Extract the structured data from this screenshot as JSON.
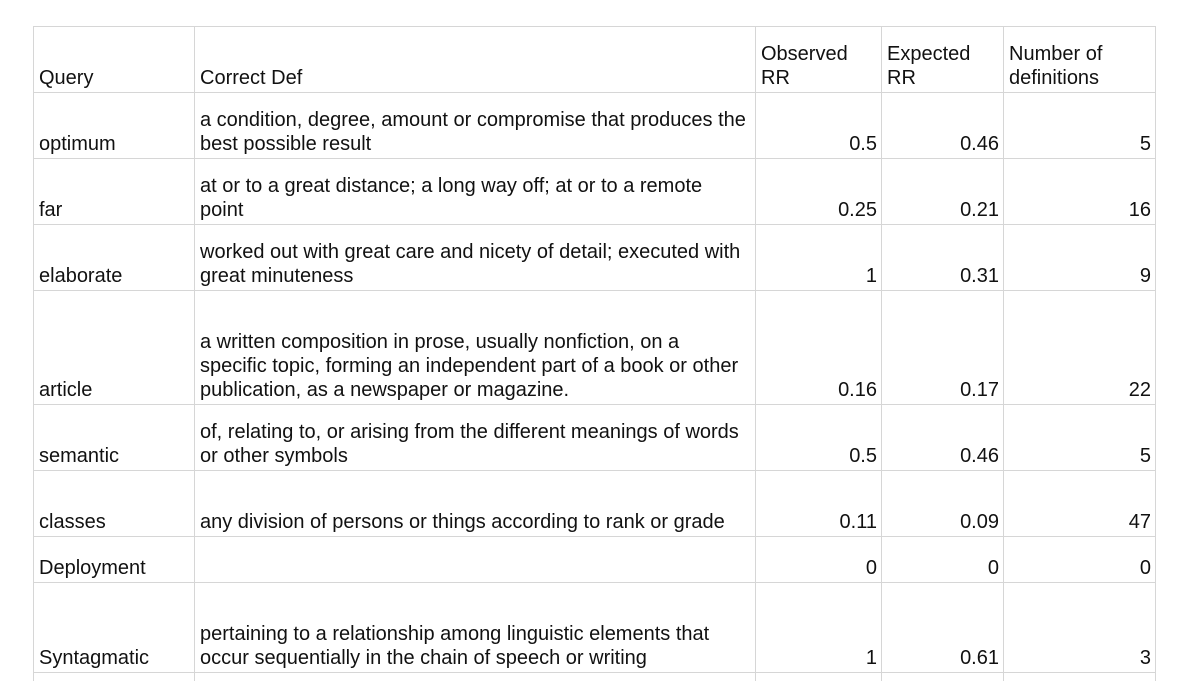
{
  "table": {
    "headers": {
      "query": "Query",
      "def": "Correct Def",
      "observed": "Observed RR",
      "expected": "Expected RR",
      "num_defs": "Number of definitions"
    },
    "rows": [
      {
        "query": "optimum",
        "def": "a condition, degree, amount or compromise that produces the best possible result",
        "observed": "0.5",
        "expected": "0.46",
        "num_defs": "5"
      },
      {
        "query": "far",
        "def": "at or to a great distance; a long way off; at or to a remote point",
        "observed": "0.25",
        "expected": "0.21",
        "num_defs": "16"
      },
      {
        "query": "elaborate",
        "def": "worked out with great care and nicety of detail; executed with great minuteness",
        "observed": "1",
        "expected": "0.31",
        "num_defs": "9"
      },
      {
        "query": "article",
        "def": "a written composition in prose, usually nonfiction, on a specific topic, forming an independent part of a book or other publication, as a newspaper or magazine.",
        "observed": "0.16",
        "expected": "0.17",
        "num_defs": "22"
      },
      {
        "query": "semantic",
        "def": "of, relating to, or arising from the different meanings of words or other symbols",
        "observed": "0.5",
        "expected": "0.46",
        "num_defs": "5"
      },
      {
        "query": "classes",
        "def": "any division of persons or things according to rank or grade",
        "observed": "0.11",
        "expected": "0.09",
        "num_defs": "47"
      },
      {
        "query": "Deployment",
        "def": "",
        "observed": "0",
        "expected": "0",
        "num_defs": "0"
      },
      {
        "query": "Syntagmatic",
        "def": "pertaining to a relationship among linguistic elements that occur sequentially in the chain of speech or writing",
        "observed": "1",
        "expected": "0.61",
        "num_defs": "3"
      }
    ]
  }
}
